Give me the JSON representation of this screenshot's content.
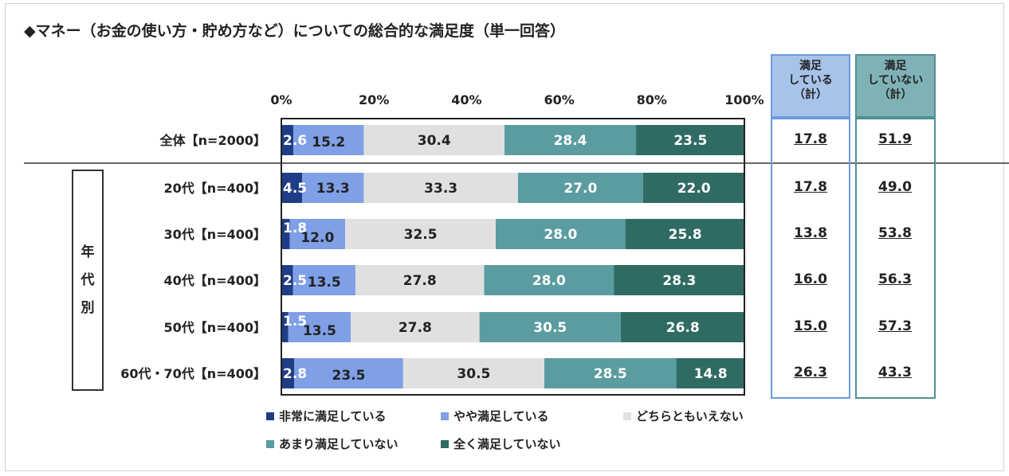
{
  "title": "◆マネー（お金の使い方・貯め方など）についての総合的な満足度（単一回答）",
  "group_label": [
    "年",
    "代",
    "別"
  ],
  "summary": {
    "col1": {
      "header": [
        "満足",
        "している",
        "（計）"
      ],
      "values": [
        "17.8",
        "17.8",
        "13.8",
        "16.0",
        "15.0",
        "26.3"
      ]
    },
    "col2": {
      "header": [
        "満足",
        "していない",
        "（計）"
      ],
      "values": [
        "51.9",
        "49.0",
        "53.8",
        "56.3",
        "57.3",
        "43.3"
      ]
    }
  },
  "legend": [
    {
      "label": "非常に満足している",
      "color": "#1f3d87"
    },
    {
      "label": "やや満足している",
      "color": "#7f9fe6"
    },
    {
      "label": "どちらともいえない",
      "color": "#e0e0e0"
    },
    {
      "label": "あまり満足していない",
      "color": "#5a9ca0"
    },
    {
      "label": "全く満足していない",
      "color": "#2f6b63"
    }
  ],
  "chart_data": {
    "type": "bar",
    "orientation": "horizontal",
    "stacked": true,
    "percent": true,
    "xlim": [
      0,
      100
    ],
    "ticks": [
      "0%",
      "20%",
      "40%",
      "60%",
      "80%",
      "100%"
    ],
    "tick_values": [
      0,
      20,
      40,
      60,
      80,
      100
    ],
    "categories": [
      "全体【n=2000】",
      "20代【n=400】",
      "30代【n=400】",
      "40代【n=400】",
      "50代【n=400】",
      "60代・70代【n=400】"
    ],
    "series": [
      {
        "name": "非常に満足している",
        "color": "#1f3d87",
        "values": [
          2.6,
          4.5,
          1.8,
          2.5,
          1.5,
          2.8
        ]
      },
      {
        "name": "やや満足している",
        "color": "#7f9fe6",
        "values": [
          15.2,
          13.3,
          12.0,
          13.5,
          13.5,
          23.5
        ]
      },
      {
        "name": "どちらともいえない",
        "color": "#e0e0e0",
        "values": [
          30.4,
          33.3,
          32.5,
          27.8,
          27.8,
          30.5
        ]
      },
      {
        "name": "あまり満足していない",
        "color": "#5a9ca0",
        "values": [
          28.4,
          27.0,
          28.0,
          28.0,
          30.5,
          28.5
        ]
      },
      {
        "name": "全く満足していない",
        "color": "#2f6b63",
        "values": [
          23.5,
          22.0,
          25.8,
          28.3,
          26.8,
          14.8
        ]
      }
    ],
    "labels": [
      [
        "2.6",
        "15.2",
        "30.4",
        "28.4",
        "23.5"
      ],
      [
        "4.5",
        "13.3",
        "33.3",
        "27.0",
        "22.0"
      ],
      [
        "1.8",
        "12.0",
        "32.5",
        "28.0",
        "25.8"
      ],
      [
        "2.5",
        "13.5",
        "27.8",
        "28.0",
        "28.3"
      ],
      [
        "1.5",
        "13.5",
        "27.8",
        "30.5",
        "26.8"
      ],
      [
        "2.8",
        "23.5",
        "30.5",
        "28.5",
        "14.8"
      ]
    ]
  }
}
